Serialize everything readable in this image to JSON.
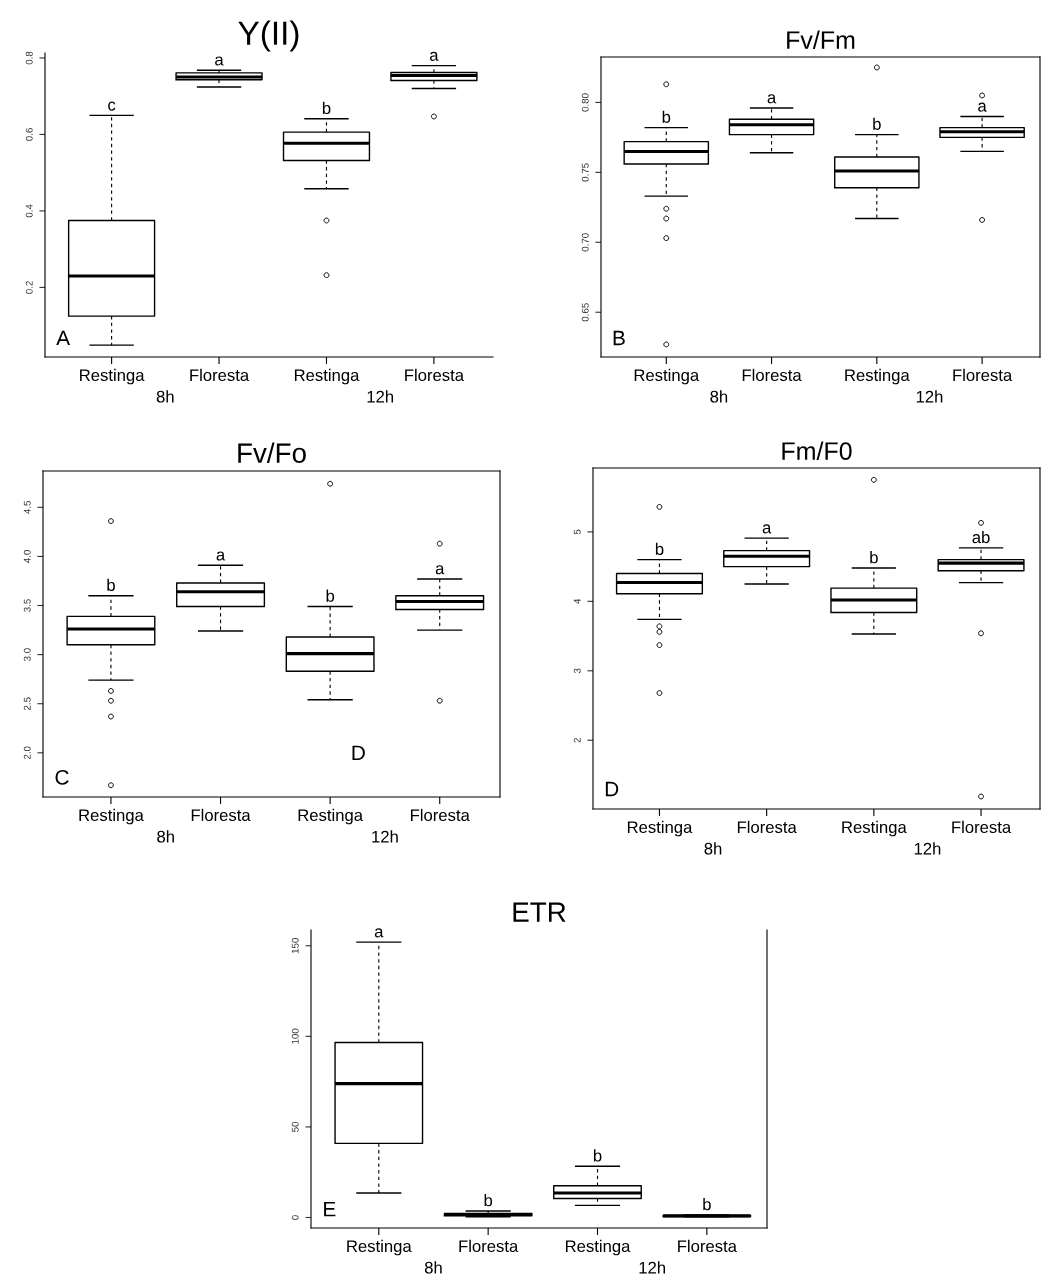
{
  "chart_data": [
    {
      "type": "box",
      "title": "Y(II)",
      "categories": [
        "Restinga",
        "Floresta",
        "Restinga",
        "Floresta"
      ],
      "boxes": [
        {
          "low": 0.049,
          "q1": 0.125,
          "median": 0.23,
          "q3": 0.375,
          "high": 0.65
        },
        {
          "low": 0.724,
          "q1": 0.743,
          "median": 0.75,
          "q3": 0.761,
          "high": 0.768
        },
        {
          "low": 0.458,
          "q1": 0.532,
          "median": 0.577,
          "q3": 0.606,
          "high": 0.641,
          "outliers": [
            0.375,
            0.232
          ]
        },
        {
          "low": 0.72,
          "q1": 0.741,
          "median": 0.754,
          "q3": 0.762,
          "high": 0.78,
          "outliers": [
            0.647
          ]
        }
      ],
      "ylim": [
        0.018,
        0.813
      ],
      "yticks": [
        0.2,
        0.4,
        0.6,
        0.8
      ],
      "grid": false,
      "annotations": [
        "c",
        "a",
        "b",
        "a",
        "A",
        "8h",
        "12h"
      ]
    },
    {
      "type": "box",
      "title": "Fv/Fm",
      "categories": [
        "Restinga",
        "Floresta",
        "Restinga",
        "Floresta"
      ],
      "boxes": [
        {
          "low": 0.733,
          "q1": 0.756,
          "median": 0.765,
          "q3": 0.772,
          "high": 0.782,
          "outliers": [
            0.813,
            0.724,
            0.717,
            0.703,
            0.627
          ]
        },
        {
          "low": 0.764,
          "q1": 0.777,
          "median": 0.784,
          "q3": 0.788,
          "high": 0.796
        },
        {
          "low": 0.717,
          "q1": 0.739,
          "median": 0.751,
          "q3": 0.761,
          "high": 0.777,
          "outliers": [
            0.825
          ]
        },
        {
          "low": 0.765,
          "q1": 0.775,
          "median": 0.779,
          "q3": 0.782,
          "high": 0.79,
          "outliers": [
            0.805,
            0.716
          ]
        }
      ],
      "ylim": [
        0.618,
        0.8325
      ],
      "yticks": [
        {
          "value": 0.65,
          "label": "0.65"
        },
        {
          "value": 0.7,
          "label": "0.70"
        },
        {
          "value": 0.75,
          "label": "0.75"
        },
        {
          "value": 0.8,
          "label": "0.80"
        }
      ],
      "grid": false,
      "annotations": [
        "b",
        "a",
        "b",
        "a",
        "B",
        "8h",
        "12h"
      ]
    },
    {
      "type": "box",
      "title": "Fv/Fo",
      "categories": [
        "Restinga",
        "Floresta",
        "Restinga",
        "Floresta"
      ],
      "boxes": [
        {
          "low": 2.74,
          "q1": 3.1,
          "median": 3.26,
          "q3": 3.39,
          "high": 3.6,
          "outliers": [
            4.36,
            2.63,
            2.53,
            2.37,
            1.67
          ]
        },
        {
          "low": 3.24,
          "q1": 3.49,
          "median": 3.64,
          "q3": 3.73,
          "high": 3.91
        },
        {
          "low": 2.54,
          "q1": 2.83,
          "median": 3.01,
          "q3": 3.18,
          "high": 3.49,
          "outliers": [
            4.74
          ]
        },
        {
          "low": 3.25,
          "q1": 3.46,
          "median": 3.54,
          "q3": 3.6,
          "high": 3.77,
          "outliers": [
            4.13,
            2.53
          ]
        }
      ],
      "ylim": [
        1.55,
        4.87
      ],
      "yticks": [
        {
          "value": 2,
          "label": "2.0"
        },
        2.5,
        {
          "value": 3,
          "label": "3.0"
        },
        3.5,
        {
          "value": 4,
          "label": "4.0"
        },
        4.5
      ],
      "grid": false,
      "annotations": [
        "b",
        "a",
        "b",
        "a",
        "C",
        "D",
        "8h",
        "12h"
      ]
    },
    {
      "type": "box",
      "title": "Fm/F0",
      "categories": [
        "Restinga",
        "Floresta",
        "Restinga",
        "Floresta"
      ],
      "boxes": [
        {
          "low": 3.74,
          "q1": 4.11,
          "median": 4.27,
          "q3": 4.4,
          "high": 4.6,
          "outliers": [
            5.36,
            3.64,
            3.56,
            3.37,
            2.68
          ]
        },
        {
          "low": 4.25,
          "q1": 4.5,
          "median": 4.65,
          "q3": 4.73,
          "high": 4.91
        },
        {
          "low": 3.53,
          "q1": 3.84,
          "median": 4.02,
          "q3": 4.19,
          "high": 4.48,
          "outliers": [
            5.75
          ]
        },
        {
          "low": 4.27,
          "q1": 4.44,
          "median": 4.55,
          "q3": 4.6,
          "high": 4.77,
          "outliers": [
            5.13,
            3.54,
            1.19
          ]
        }
      ],
      "ylim": [
        1.01,
        5.92
      ],
      "yticks": [
        2,
        3,
        4,
        5
      ],
      "grid": false,
      "annotations": [
        "b",
        "a",
        "b",
        "ab",
        "D",
        "8h",
        "12h"
      ]
    },
    {
      "type": "box",
      "title": "ETR",
      "categories": [
        "Restinga",
        "Floresta",
        "Restinga",
        "Floresta"
      ],
      "boxes": [
        {
          "low": 13.5,
          "q1": 40.9,
          "median": 73.9,
          "q3": 96.6,
          "high": 152
        },
        {
          "low": 0.4,
          "q1": 0.9,
          "median": 1.6,
          "q3": 2.2,
          "high": 3.6
        },
        {
          "low": 6.7,
          "q1": 10.5,
          "median": 13.5,
          "q3": 17.5,
          "high": 28.3
        },
        {
          "low": 0.4,
          "q1": 0.5,
          "median": 0.9,
          "q3": 1.1,
          "high": 1.4
        }
      ],
      "ylim": [
        -5.8,
        158.7
      ],
      "yticks": [
        0,
        50,
        100,
        150
      ],
      "grid": false,
      "annotations": [
        "a",
        "b",
        "b",
        "b",
        "E",
        "8h",
        "12h"
      ]
    }
  ]
}
